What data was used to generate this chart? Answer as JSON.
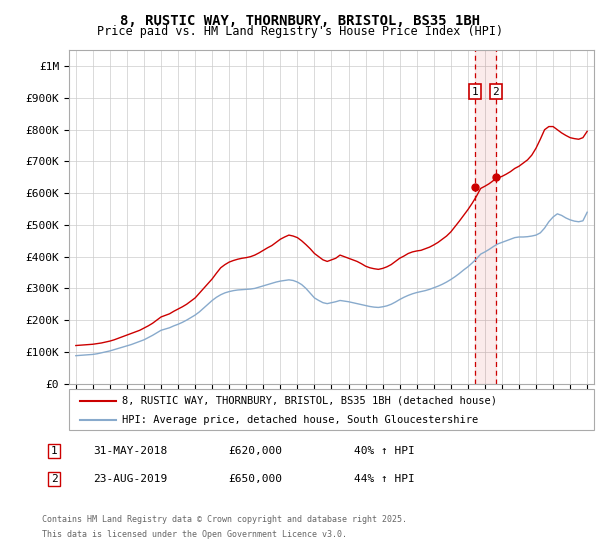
{
  "title": "8, RUSTIC WAY, THORNBURY, BRISTOL, BS35 1BH",
  "subtitle": "Price paid vs. HM Land Registry's House Price Index (HPI)",
  "red_line_color": "#cc0000",
  "blue_line_color": "#88aacc",
  "vline_color": "#cc0000",
  "grid_color": "#cccccc",
  "ylim": [
    0,
    1050000
  ],
  "yticks": [
    0,
    100000,
    200000,
    300000,
    400000,
    500000,
    600000,
    700000,
    800000,
    900000,
    1000000
  ],
  "ytick_labels": [
    "£0",
    "£100K",
    "£200K",
    "£300K",
    "£400K",
    "£500K",
    "£600K",
    "£700K",
    "£800K",
    "£900K",
    "£1M"
  ],
  "xmin": 1994.6,
  "xmax": 2025.4,
  "sale1_x": 2018.42,
  "sale1_y": 620000,
  "sale2_x": 2019.65,
  "sale2_y": 650000,
  "sale1_date": "31-MAY-2018",
  "sale1_price": "£620,000",
  "sale1_hpi": "40% ↑ HPI",
  "sale2_date": "23-AUG-2019",
  "sale2_price": "£650,000",
  "sale2_hpi": "44% ↑ HPI",
  "legend_entry1": "8, RUSTIC WAY, THORNBURY, BRISTOL, BS35 1BH (detached house)",
  "legend_entry2": "HPI: Average price, detached house, South Gloucestershire",
  "footer1": "Contains HM Land Registry data © Crown copyright and database right 2025.",
  "footer2": "This data is licensed under the Open Government Licence v3.0.",
  "red_x": [
    1995,
    1995.25,
    1995.5,
    1995.75,
    1996,
    1996.25,
    1996.5,
    1996.75,
    1997,
    1997.25,
    1997.5,
    1997.75,
    1998,
    1998.25,
    1998.5,
    1998.75,
    1999,
    1999.25,
    1999.5,
    1999.75,
    2000,
    2000.25,
    2000.5,
    2000.75,
    2001,
    2001.25,
    2001.5,
    2001.75,
    2002,
    2002.25,
    2002.5,
    2002.75,
    2003,
    2003.25,
    2003.5,
    2003.75,
    2004,
    2004.25,
    2004.5,
    2004.75,
    2005,
    2005.25,
    2005.5,
    2005.75,
    2006,
    2006.25,
    2006.5,
    2006.75,
    2007,
    2007.25,
    2007.5,
    2007.75,
    2008,
    2008.25,
    2008.5,
    2008.75,
    2009,
    2009.25,
    2009.5,
    2009.75,
    2010,
    2010.25,
    2010.5,
    2010.75,
    2011,
    2011.25,
    2011.5,
    2011.75,
    2012,
    2012.25,
    2012.5,
    2012.75,
    2013,
    2013.25,
    2013.5,
    2013.75,
    2014,
    2014.25,
    2014.5,
    2014.75,
    2015,
    2015.25,
    2015.5,
    2015.75,
    2016,
    2016.25,
    2016.5,
    2016.75,
    2017,
    2017.25,
    2017.5,
    2017.75,
    2018,
    2018.25,
    2018.5,
    2018.75,
    2019,
    2019.25,
    2019.5,
    2019.75,
    2020,
    2020.25,
    2020.5,
    2020.75,
    2021,
    2021.25,
    2021.5,
    2021.75,
    2022,
    2022.25,
    2022.5,
    2022.75,
    2023,
    2023.25,
    2023.5,
    2023.75,
    2024,
    2024.25,
    2024.5,
    2024.75,
    2025
  ],
  "red_y": [
    120000,
    121000,
    122000,
    123000,
    124000,
    126000,
    128000,
    131000,
    134000,
    138000,
    143000,
    148000,
    153000,
    158000,
    163000,
    168000,
    175000,
    182000,
    190000,
    200000,
    210000,
    215000,
    220000,
    228000,
    235000,
    242000,
    250000,
    260000,
    270000,
    285000,
    300000,
    315000,
    330000,
    348000,
    365000,
    375000,
    383000,
    388000,
    392000,
    395000,
    397000,
    400000,
    405000,
    412000,
    420000,
    428000,
    435000,
    445000,
    455000,
    462000,
    468000,
    465000,
    460000,
    450000,
    438000,
    425000,
    410000,
    400000,
    390000,
    385000,
    390000,
    395000,
    405000,
    400000,
    395000,
    390000,
    385000,
    378000,
    370000,
    365000,
    362000,
    360000,
    363000,
    368000,
    375000,
    385000,
    395000,
    402000,
    410000,
    415000,
    418000,
    420000,
    425000,
    430000,
    437000,
    445000,
    455000,
    465000,
    478000,
    495000,
    512000,
    530000,
    548000,
    568000,
    590000,
    615000,
    622000,
    630000,
    640000,
    648000,
    653000,
    660000,
    668000,
    678000,
    685000,
    695000,
    705000,
    720000,
    742000,
    770000,
    800000,
    810000,
    810000,
    800000,
    790000,
    782000,
    775000,
    772000,
    770000,
    775000,
    795000
  ],
  "blue_x": [
    1995,
    1995.25,
    1995.5,
    1995.75,
    1996,
    1996.25,
    1996.5,
    1996.75,
    1997,
    1997.25,
    1997.5,
    1997.75,
    1998,
    1998.25,
    1998.5,
    1998.75,
    1999,
    1999.25,
    1999.5,
    1999.75,
    2000,
    2000.25,
    2000.5,
    2000.75,
    2001,
    2001.25,
    2001.5,
    2001.75,
    2002,
    2002.25,
    2002.5,
    2002.75,
    2003,
    2003.25,
    2003.5,
    2003.75,
    2004,
    2004.25,
    2004.5,
    2004.75,
    2005,
    2005.25,
    2005.5,
    2005.75,
    2006,
    2006.25,
    2006.5,
    2006.75,
    2007,
    2007.25,
    2007.5,
    2007.75,
    2008,
    2008.25,
    2008.5,
    2008.75,
    2009,
    2009.25,
    2009.5,
    2009.75,
    2010,
    2010.25,
    2010.5,
    2010.75,
    2011,
    2011.25,
    2011.5,
    2011.75,
    2012,
    2012.25,
    2012.5,
    2012.75,
    2013,
    2013.25,
    2013.5,
    2013.75,
    2014,
    2014.25,
    2014.5,
    2014.75,
    2015,
    2015.25,
    2015.5,
    2015.75,
    2016,
    2016.25,
    2016.5,
    2016.75,
    2017,
    2017.25,
    2017.5,
    2017.75,
    2018,
    2018.25,
    2018.5,
    2018.75,
    2019,
    2019.25,
    2019.5,
    2019.75,
    2020,
    2020.25,
    2020.5,
    2020.75,
    2021,
    2021.25,
    2021.5,
    2021.75,
    2022,
    2022.25,
    2022.5,
    2022.75,
    2023,
    2023.25,
    2023.5,
    2023.75,
    2024,
    2024.25,
    2024.5,
    2024.75,
    2025
  ],
  "blue_y": [
    88000,
    89000,
    90000,
    91000,
    92000,
    94000,
    97000,
    100000,
    103000,
    107000,
    111000,
    115000,
    119000,
    123000,
    128000,
    133000,
    138000,
    145000,
    152000,
    160000,
    168000,
    172000,
    176000,
    182000,
    187000,
    193000,
    200000,
    208000,
    216000,
    226000,
    238000,
    250000,
    262000,
    272000,
    280000,
    286000,
    290000,
    293000,
    295000,
    296000,
    297000,
    298000,
    300000,
    304000,
    308000,
    312000,
    316000,
    320000,
    323000,
    325000,
    327000,
    325000,
    320000,
    312000,
    300000,
    285000,
    270000,
    262000,
    255000,
    252000,
    255000,
    258000,
    262000,
    260000,
    258000,
    255000,
    252000,
    249000,
    246000,
    243000,
    241000,
    240000,
    242000,
    245000,
    250000,
    257000,
    265000,
    272000,
    278000,
    283000,
    287000,
    290000,
    293000,
    297000,
    302000,
    307000,
    313000,
    320000,
    328000,
    337000,
    347000,
    358000,
    368000,
    380000,
    393000,
    408000,
    415000,
    423000,
    432000,
    440000,
    445000,
    450000,
    455000,
    460000,
    462000,
    462000,
    463000,
    465000,
    468000,
    475000,
    490000,
    510000,
    525000,
    535000,
    530000,
    522000,
    516000,
    512000,
    510000,
    513000,
    540000
  ]
}
